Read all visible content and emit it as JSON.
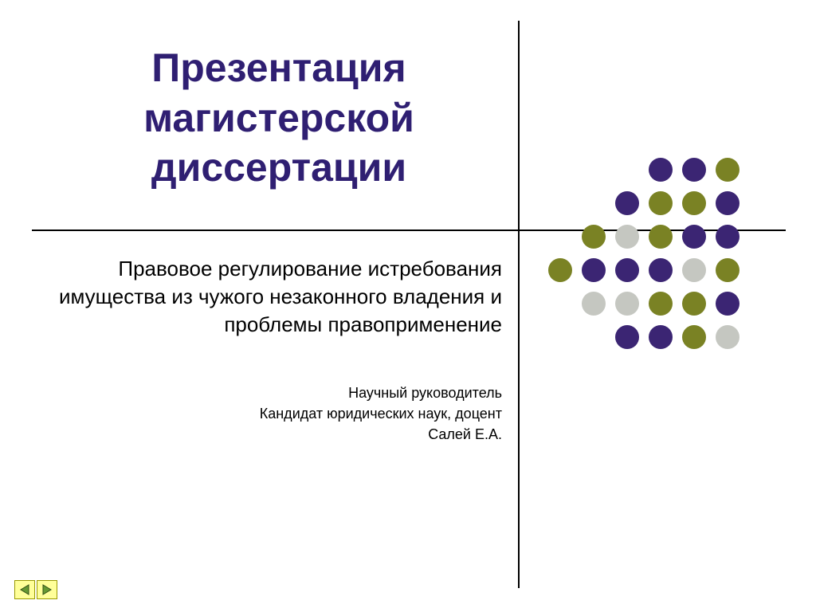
{
  "slide": {
    "title_line1": "Презентация",
    "title_line2": "магистерской",
    "title_line3": "диссертации",
    "title_color": "#2f1f72",
    "subtitle": "Правовое регулирование истребования имущества из чужого незаконного владения  и проблемы правоприменение",
    "advisor_lines": [
      "Научный руководитель",
      "Кандидат юридических наук, доцент",
      "Салей Е.А."
    ],
    "background": "#ffffff",
    "line_color": "#000000"
  },
  "dot_grid": {
    "rows": 6,
    "cols": 6,
    "radius": 15,
    "spacing": 42,
    "colors": {
      "purple": "#3b2573",
      "olive": "#7a8224",
      "gray": "#c5c7c1",
      "empty": null
    },
    "pattern": [
      [
        "empty",
        "empty",
        "empty",
        "purple",
        "purple",
        "olive"
      ],
      [
        "empty",
        "empty",
        "purple",
        "olive",
        "olive",
        "purple"
      ],
      [
        "empty",
        "olive",
        "gray",
        "olive",
        "purple",
        "purple"
      ],
      [
        "olive",
        "purple",
        "purple",
        "purple",
        "gray",
        "olive"
      ],
      [
        "empty",
        "gray",
        "gray",
        "olive",
        "olive",
        "purple"
      ],
      [
        "empty",
        "empty",
        "purple",
        "purple",
        "olive",
        "gray"
      ]
    ]
  },
  "nav": {
    "prev_fill": "#669933",
    "next_fill": "#669933",
    "button_bg": "#ffff99",
    "button_border": "#9a9a00"
  }
}
